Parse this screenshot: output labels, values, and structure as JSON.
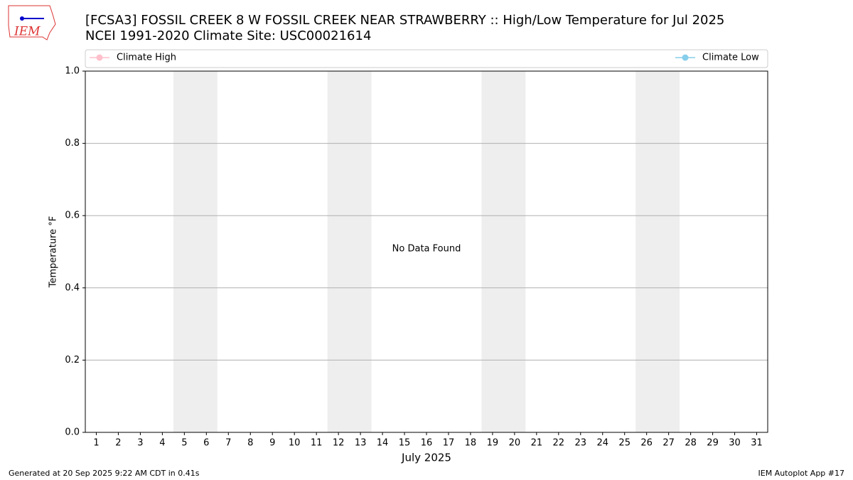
{
  "chart_data": {
    "type": "line",
    "title": "[FCSA3] FOSSIL CREEK 8 W FOSSIL CREEK NEAR STRAWBERRY :: High/Low Temperature for Jul 2025",
    "subtitle": "NCEI 1991-2020 Climate Site: USC00021614",
    "xlabel": "July 2025",
    "ylabel": "Temperature °F",
    "annotation": "No Data Found",
    "x": [
      1,
      2,
      3,
      4,
      5,
      6,
      7,
      8,
      9,
      10,
      11,
      12,
      13,
      14,
      15,
      16,
      17,
      18,
      19,
      20,
      21,
      22,
      23,
      24,
      25,
      26,
      27,
      28,
      29,
      30,
      31
    ],
    "series": [
      {
        "name": "Climate High",
        "color": "pink",
        "values": [
          null,
          null,
          null,
          null,
          null,
          null,
          null,
          null,
          null,
          null,
          null,
          null,
          null,
          null,
          null,
          null,
          null,
          null,
          null,
          null,
          null,
          null,
          null,
          null,
          null,
          null,
          null,
          null,
          null,
          null,
          null
        ]
      },
      {
        "name": "Climate Low",
        "color": "skyblue",
        "values": [
          null,
          null,
          null,
          null,
          null,
          null,
          null,
          null,
          null,
          null,
          null,
          null,
          null,
          null,
          null,
          null,
          null,
          null,
          null,
          null,
          null,
          null,
          null,
          null,
          null,
          null,
          null,
          null,
          null,
          null,
          null
        ]
      }
    ],
    "weekend_bands": [
      [
        4.5,
        6.5
      ],
      [
        11.5,
        13.5
      ],
      [
        18.5,
        20.5
      ],
      [
        25.5,
        27.5
      ]
    ],
    "xlim": [
      0.5,
      31.5
    ],
    "xticks": [
      1,
      2,
      3,
      4,
      5,
      6,
      7,
      8,
      9,
      10,
      11,
      12,
      13,
      14,
      15,
      16,
      17,
      18,
      19,
      20,
      21,
      22,
      23,
      24,
      25,
      26,
      27,
      28,
      29,
      30,
      31
    ],
    "ylim": [
      0,
      1
    ],
    "yticks": [
      {
        "value": 0,
        "label": "0.0"
      },
      {
        "value": 0.2,
        "label": "0.2"
      },
      {
        "value": 0.4,
        "label": "0.4"
      },
      {
        "value": 0.6,
        "label": "0.6"
      },
      {
        "value": 0.8,
        "label": "0.8"
      },
      {
        "value": 1,
        "label": "1.0"
      }
    ],
    "grid": true
  },
  "logo": {
    "text": "IEM"
  },
  "footer": {
    "left": "Generated at 20 Sep 2025 9:22 AM CDT in 0.41s",
    "right": "IEM Autoplot App #17"
  }
}
